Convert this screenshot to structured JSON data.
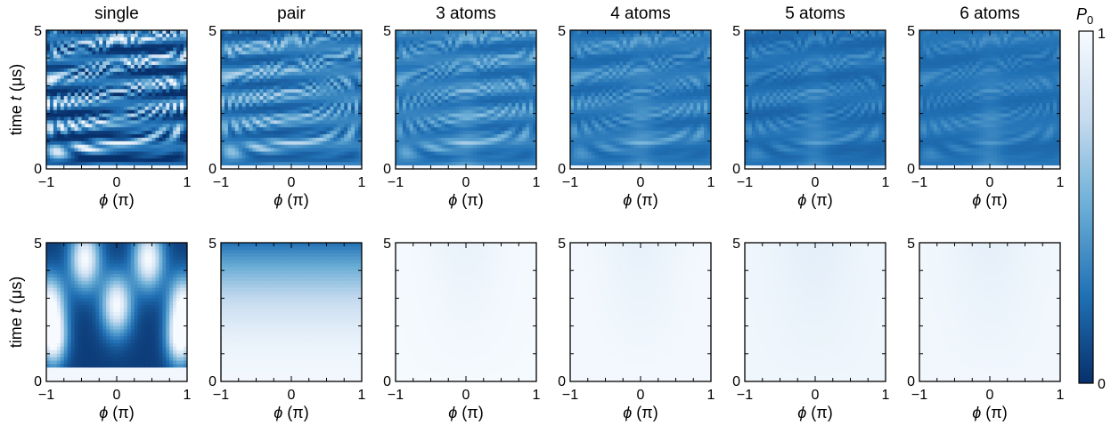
{
  "chart_data": {
    "type": "heatmap",
    "columns": [
      "single",
      "pair",
      "3 atoms",
      "4 atoms",
      "5 atoms",
      "6 atoms"
    ],
    "x_axis": {
      "label_symbol": "ϕ",
      "label_unit": "(π)",
      "range": [
        -1,
        1
      ],
      "ticks": [
        "−1",
        "0",
        "1"
      ]
    },
    "y_axis": {
      "label_prefix": "time",
      "label_symbol": "t",
      "label_unit": "(μs)",
      "range": [
        0,
        5
      ],
      "ticks": [
        "0",
        "5"
      ]
    },
    "colorbar": {
      "label_base": "P",
      "label_sub": "0",
      "min": 0,
      "max": 1,
      "min_label": "0",
      "max_label": "1",
      "colormap": "Blues_r",
      "colors": [
        "#08306b",
        "#2171b5",
        "#6baed6",
        "#c6dbef",
        "#f7fbff"
      ]
    },
    "rows": [
      {
        "mean_level": [
          0.5,
          0.45,
          0.4,
          0.35,
          0.3,
          0.3
        ],
        "grid": "on"
      },
      {
        "mean_level": [
          0.35,
          0.92,
          0.97,
          0.96,
          0.94,
          0.95
        ],
        "grid": "off"
      }
    ]
  }
}
